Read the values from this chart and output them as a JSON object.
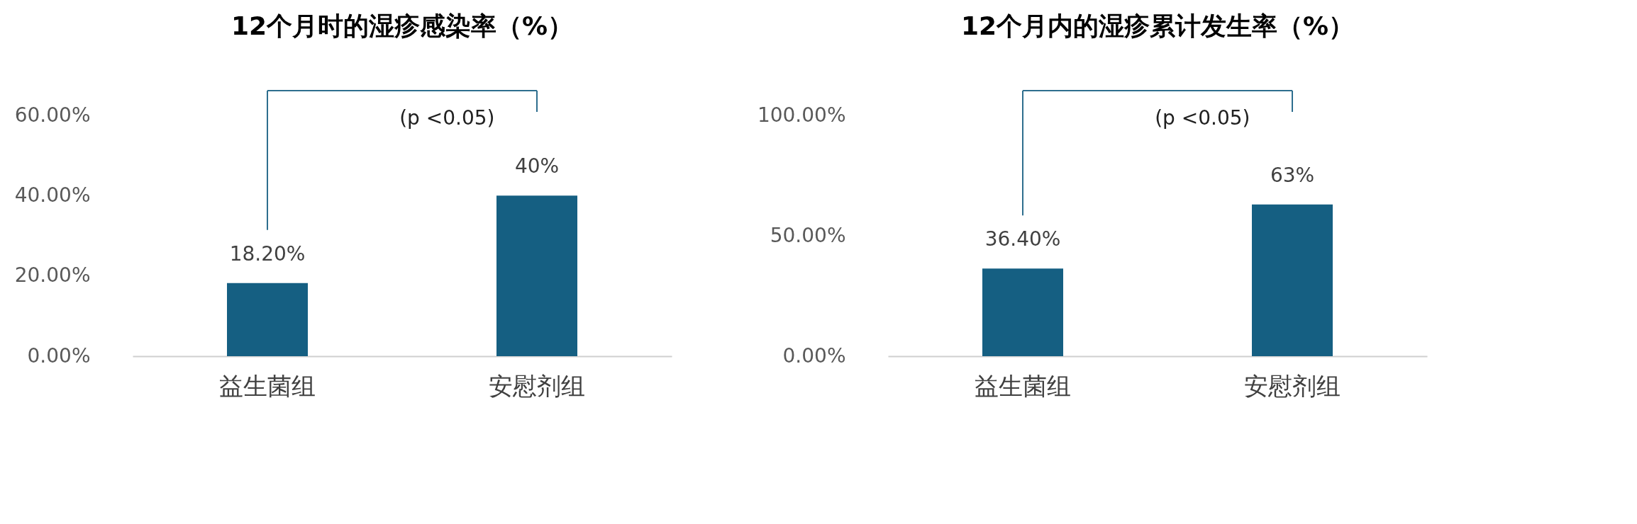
{
  "chart_data": [
    {
      "type": "bar",
      "title": "12个月时的湿疹感染率（%）",
      "categories": [
        "益生菌组",
        "安慰剂组"
      ],
      "values": [
        18.2,
        40
      ],
      "value_labels": [
        "18.20%",
        "40%"
      ],
      "color": "#155f82",
      "ylim": [
        0,
        60
      ],
      "yticks": [
        {
          "value": 0,
          "label": "0.00%"
        },
        {
          "value": 20,
          "label": "20.00%"
        },
        {
          "value": 40,
          "label": "40.00%"
        },
        {
          "value": 60,
          "label": "60.00%"
        }
      ],
      "grid": false,
      "annotations": [
        "(p <0.05)"
      ]
    },
    {
      "type": "bar",
      "title": "12个月内的湿疹累计发生率（%）",
      "categories": [
        "益生菌组",
        "安慰剂组"
      ],
      "values": [
        36.4,
        63
      ],
      "value_labels": [
        "36.40%",
        "63%"
      ],
      "color": "#155f82",
      "ylim": [
        0,
        100
      ],
      "yticks": [
        {
          "value": 0,
          "label": "0.00%"
        },
        {
          "value": 50,
          "label": "50.00%"
        },
        {
          "value": 100,
          "label": "100.00%"
        }
      ],
      "grid": false,
      "annotations": [
        "(p <0.05)"
      ]
    }
  ]
}
